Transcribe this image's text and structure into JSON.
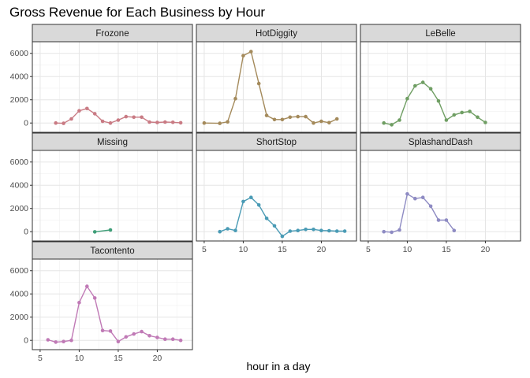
{
  "chart_data": {
    "type": "line",
    "title": "Gross Revenue for Each Business by Hour",
    "xlabel": "hour in a day",
    "ylabel": "",
    "xlim": [
      4,
      24.5
    ],
    "ylim": [
      -800,
      7000
    ],
    "x_ticks": [
      5,
      10,
      15,
      20
    ],
    "y_ticks": [
      0,
      2000,
      4000,
      6000
    ],
    "grid": true,
    "legend": "none",
    "facets": [
      {
        "name": "Frozone",
        "color": "#C97B84",
        "x": [
          7,
          8,
          9,
          10,
          11,
          12,
          13,
          14,
          15,
          16,
          17,
          18,
          19,
          20,
          21,
          22,
          23
        ],
        "y": [
          0,
          -30,
          350,
          1050,
          1250,
          800,
          150,
          0,
          250,
          550,
          500,
          500,
          80,
          50,
          80,
          60,
          20
        ]
      },
      {
        "name": "HotDiggity",
        "color": "#A48A5B",
        "x": [
          5,
          7,
          8,
          9,
          10,
          11,
          12,
          13,
          14,
          15,
          16,
          17,
          18,
          19,
          20,
          21,
          22
        ],
        "y": [
          0,
          -30,
          100,
          2100,
          5800,
          6150,
          3400,
          650,
          300,
          300,
          500,
          550,
          550,
          0,
          150,
          30,
          350
        ]
      },
      {
        "name": "LeBelle",
        "color": "#6F9E63",
        "x": [
          7,
          8,
          9,
          10,
          11,
          12,
          13,
          14,
          15,
          16,
          17,
          18,
          19,
          20
        ],
        "y": [
          0,
          -150,
          250,
          2100,
          3200,
          3500,
          2950,
          1900,
          250,
          700,
          900,
          1000,
          500,
          50
        ]
      },
      {
        "name": "Missing",
        "color": "#3E9E78",
        "x": [
          12,
          14
        ],
        "y": [
          -10,
          150
        ]
      },
      {
        "name": "ShortStop",
        "color": "#4A9BB5",
        "x": [
          7,
          8,
          9,
          10,
          11,
          12,
          13,
          14,
          15,
          16,
          17,
          18,
          19,
          20,
          21,
          22,
          23
        ],
        "y": [
          0,
          250,
          100,
          2600,
          2950,
          2300,
          1150,
          500,
          -400,
          50,
          100,
          200,
          200,
          100,
          80,
          50,
          50
        ]
      },
      {
        "name": "SplashandDash",
        "color": "#8E8BC3",
        "x": [
          7,
          8,
          9,
          10,
          11,
          12,
          13,
          14,
          15,
          16
        ],
        "y": [
          0,
          -50,
          150,
          3250,
          2850,
          2950,
          2200,
          1000,
          1000,
          100
        ]
      },
      {
        "name": "Tacontento",
        "color": "#C07AB6",
        "x": [
          6,
          7,
          8,
          9,
          10,
          11,
          12,
          13,
          14,
          15,
          16,
          17,
          18,
          19,
          20,
          21,
          22,
          23
        ],
        "y": [
          50,
          -150,
          -100,
          0,
          3250,
          4650,
          3650,
          850,
          800,
          -100,
          300,
          550,
          750,
          400,
          250,
          100,
          100,
          0
        ]
      }
    ]
  }
}
